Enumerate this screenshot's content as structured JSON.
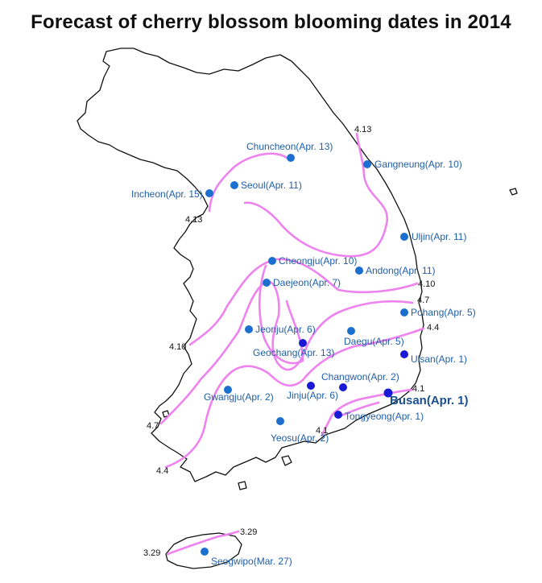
{
  "title": "Forecast of cherry blossom blooming dates in 2014",
  "colors": {
    "isoline": "#ee82ee",
    "city_dot": "#1b6fcf",
    "city_dot_alt": "#1a1ad4",
    "label": "#1f5ea8",
    "coastline": "#111111"
  },
  "cities": [
    {
      "id": "chuncheon",
      "label": "Chuncheon(Apr. 13)"
    },
    {
      "id": "gangneung",
      "label": "Gangneung(Apr. 10)"
    },
    {
      "id": "incheon",
      "label": "Incheon(Apr. 15)"
    },
    {
      "id": "seoul",
      "label": "Seoul(Apr. 11)"
    },
    {
      "id": "uljin",
      "label": "Uljin(Apr. 11)"
    },
    {
      "id": "cheongju",
      "label": "Cheongju(Apr. 10)"
    },
    {
      "id": "andong",
      "label": "Andong(Apr. 11)"
    },
    {
      "id": "daejeon",
      "label": "Daejeon(Apr. 7)"
    },
    {
      "id": "pohang",
      "label": "Pohang(Apr. 5)"
    },
    {
      "id": "jeonju",
      "label": "Jeonju(Apr. 6)"
    },
    {
      "id": "daegu",
      "label": "Daegu(Apr. 5)"
    },
    {
      "id": "geochang",
      "label": "Geochang(Apr. 13)"
    },
    {
      "id": "ulsan",
      "label": "Ulsan(Apr. 1)"
    },
    {
      "id": "changwon",
      "label": "Changwon(Apr. 2)"
    },
    {
      "id": "gwangju",
      "label": "Gwangju(Apr. 2)"
    },
    {
      "id": "jinju",
      "label": "Jinju(Apr. 6)"
    },
    {
      "id": "busan",
      "label": "Busan(Apr. 1)"
    },
    {
      "id": "tongyeong",
      "label": "Tongyeong(Apr. 1)"
    },
    {
      "id": "yeosu",
      "label": "Yeosu(Apr. 2)"
    },
    {
      "id": "seogwipo",
      "label": "Seogwipo(Mar. 27)"
    }
  ],
  "isoline_labels": [
    {
      "id": "ne-413",
      "text": "4.13"
    },
    {
      "id": "nw-413",
      "text": "4.13"
    },
    {
      "id": "e-410",
      "text": "4.10"
    },
    {
      "id": "e-47",
      "text": "4.7"
    },
    {
      "id": "e-44",
      "text": "4.4"
    },
    {
      "id": "w-410",
      "text": "4.10"
    },
    {
      "id": "e-41",
      "text": "4.1"
    },
    {
      "id": "s-41",
      "text": "4.1"
    },
    {
      "id": "w-47",
      "text": "4.7"
    },
    {
      "id": "w-44",
      "text": "4.4"
    },
    {
      "id": "jeju-329-e",
      "text": "3.29"
    },
    {
      "id": "jeju-329-w",
      "text": "3.29"
    }
  ]
}
